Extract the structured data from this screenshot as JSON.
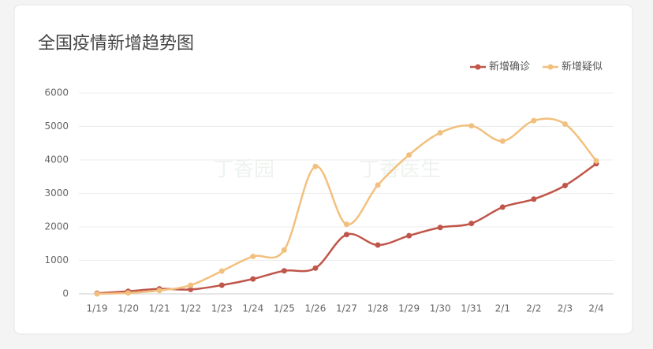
{
  "chart_data": {
    "type": "line",
    "title": "全国疫情新增趋势图",
    "watermark": [
      "丁香园",
      "丁香医生"
    ],
    "categories": [
      "1/19",
      "1/20",
      "1/21",
      "1/22",
      "1/23",
      "1/24",
      "1/25",
      "1/26",
      "1/27",
      "1/28",
      "1/29",
      "1/30",
      "1/31",
      "2/1",
      "2/2",
      "2/3",
      "2/4"
    ],
    "series": [
      {
        "name": "新增确诊",
        "color": "#c0564a",
        "values": [
          17,
          77,
          149,
          131,
          259,
          444,
          688,
          769,
          1771,
          1459,
          1737,
          1982,
          2102,
          2590,
          2829,
          3235,
          3887
        ]
      },
      {
        "name": "新增疑似",
        "color": "#f2c07e",
        "values": [
          0,
          27,
          100,
          257,
          680,
          1118,
          1309,
          3806,
          2077,
          3248,
          4148,
          4812,
          5019,
          4562,
          5173,
          5072,
          3971
        ]
      }
    ],
    "ylim": [
      0,
      6000
    ],
    "yticks": [
      0,
      1000,
      2000,
      3000,
      4000,
      5000,
      6000
    ],
    "grid": true,
    "smooth": true,
    "legend": "top-right"
  }
}
